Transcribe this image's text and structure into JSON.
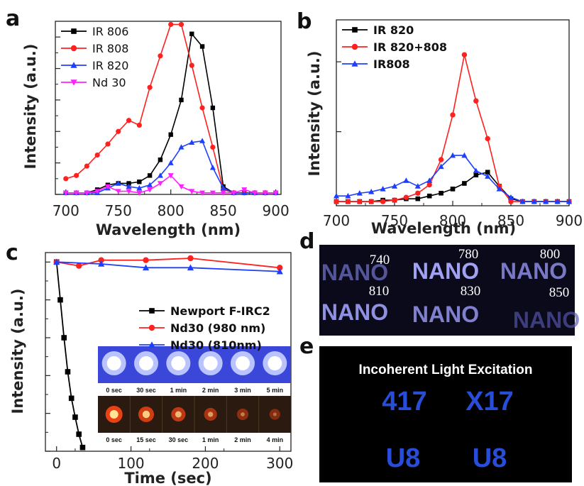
{
  "chart_data": [
    {
      "panel": "a",
      "type": "line",
      "xlabel": "Wavelength (nm)",
      "ylabel": "Intensity (a.u.)",
      "xlim": [
        690,
        905
      ],
      "ylim": [
        0,
        1.1
      ],
      "xticks": [
        "700",
        "750",
        "800",
        "850",
        "900"
      ],
      "grid": false,
      "legend_position": "top-left",
      "x": [
        700,
        710,
        720,
        730,
        740,
        750,
        760,
        770,
        780,
        790,
        800,
        810,
        820,
        830,
        840,
        850,
        860,
        870,
        880,
        890,
        900
      ],
      "series": [
        {
          "name": "IR 806",
          "color": "#000000",
          "marker": "square",
          "values": [
            0.01,
            0.01,
            0.01,
            0.03,
            0.06,
            0.07,
            0.07,
            0.08,
            0.12,
            0.22,
            0.38,
            0.6,
            1.02,
            0.94,
            0.55,
            0.05,
            0.01,
            0.01,
            0.01,
            0.01,
            0.01
          ]
        },
        {
          "name": "IR 808",
          "color": "#ff2020",
          "marker": "circle",
          "values": [
            0.1,
            0.12,
            0.18,
            0.25,
            0.32,
            0.4,
            0.47,
            0.44,
            0.68,
            0.88,
            1.08,
            1.08,
            0.82,
            0.55,
            0.3,
            0.03,
            0.01,
            0.01,
            0.01,
            0.01,
            0.01
          ]
        },
        {
          "name": "IR 820",
          "color": "#1f3fff",
          "marker": "triangle-up",
          "values": [
            0.01,
            0.01,
            0.01,
            0.01,
            0.04,
            0.07,
            0.05,
            0.04,
            0.06,
            0.12,
            0.2,
            0.3,
            0.33,
            0.34,
            0.17,
            0.04,
            0.01,
            0.01,
            0.01,
            0.01,
            0.01
          ]
        },
        {
          "name": "Nd  30",
          "color": "#ff1fff",
          "marker": "triangle-down",
          "values": [
            0.01,
            0.01,
            0.01,
            0.02,
            0.05,
            0.02,
            0.02,
            0.01,
            0.03,
            0.07,
            0.12,
            0.05,
            0.02,
            0.01,
            0.01,
            0.01,
            0.01,
            0.03,
            0.01,
            0.01,
            0.01
          ]
        }
      ]
    },
    {
      "panel": "b",
      "type": "line",
      "xlabel": "Wavelength (nm)",
      "ylabel": "Intensity (a.u.)",
      "xlim": [
        700,
        900
      ],
      "ylim": [
        -0.03,
        1.3
      ],
      "xticks": [
        "700",
        "750",
        "800",
        "850",
        "900"
      ],
      "grid": false,
      "legend_position": "top-left",
      "x": [
        700,
        710,
        720,
        730,
        740,
        750,
        760,
        770,
        780,
        790,
        800,
        810,
        820,
        830,
        840,
        850,
        860,
        870,
        880,
        890,
        900
      ],
      "series": [
        {
          "name": "IR 820",
          "color": "#000000",
          "marker": "square",
          "values": [
            0.0,
            0.0,
            0.0,
            0.0,
            0.01,
            0.01,
            0.02,
            0.02,
            0.04,
            0.06,
            0.09,
            0.13,
            0.19,
            0.21,
            0.11,
            0.02,
            0.0,
            0.0,
            0.0,
            0.0,
            0.0
          ]
        },
        {
          "name": "IR 820+808",
          "color": "#ff2020",
          "marker": "circle",
          "values": [
            0.0,
            0.0,
            0.0,
            0.0,
            0.0,
            0.01,
            0.03,
            0.06,
            0.12,
            0.3,
            0.62,
            1.05,
            0.72,
            0.45,
            0.11,
            0.0,
            0.0,
            0.0,
            0.0,
            0.0,
            0.0
          ]
        },
        {
          "name": "IR808",
          "color": "#1f3fff",
          "marker": "triangle-up",
          "values": [
            0.04,
            0.04,
            0.06,
            0.07,
            0.09,
            0.11,
            0.15,
            0.11,
            0.15,
            0.25,
            0.33,
            0.33,
            0.22,
            0.18,
            0.09,
            0.03,
            0.0,
            0.0,
            0.0,
            0.0,
            0.0
          ]
        }
      ]
    },
    {
      "panel": "c",
      "type": "line",
      "xlabel": "Time (sec)",
      "ylabel": "Intensity (a.u.)",
      "xlim": [
        -15,
        315
      ],
      "ylim": [
        0,
        1.05
      ],
      "xticks": [
        "0",
        "100",
        "200",
        "300"
      ],
      "grid": false,
      "legend_position": "top-right",
      "series": [
        {
          "name": "Newport F-IRC2",
          "color": "#000000",
          "marker": "square",
          "x": [
            0,
            5,
            10,
            15,
            20,
            25,
            30,
            35
          ],
          "values": [
            1.0,
            0.8,
            0.6,
            0.42,
            0.28,
            0.18,
            0.09,
            0.02
          ]
        },
        {
          "name": "Nd30 (980 nm)",
          "color": "#ff2020",
          "marker": "circle",
          "x": [
            0,
            30,
            60,
            120,
            180,
            300
          ],
          "values": [
            1.0,
            0.98,
            1.01,
            1.01,
            1.02,
            0.97
          ]
        },
        {
          "name": "Nd30 (810nm)",
          "color": "#1f3fff",
          "marker": "triangle-up",
          "x": [
            0,
            60,
            120,
            180,
            300
          ],
          "values": [
            1.0,
            0.99,
            0.97,
            0.97,
            0.95
          ]
        }
      ]
    }
  ],
  "panel_labels": {
    "a": "a",
    "b": "b",
    "c": "c",
    "d": "d",
    "e": "e"
  },
  "inset_c": {
    "top_labels": [
      "0 sec",
      "30 sec",
      "1 min",
      "2 min",
      "3 min",
      "5 min"
    ],
    "bottom_labels": [
      "0 sec",
      "15 sec",
      "30 sec",
      "1 min",
      "2 min",
      "4 min"
    ],
    "bottom_brightness": [
      1.0,
      0.8,
      0.62,
      0.42,
      0.22,
      0.12
    ]
  },
  "panel_d": {
    "labels": [
      "740",
      "780",
      "800",
      "810",
      "830",
      "850"
    ],
    "word": "NANO",
    "word_brightness": [
      0.45,
      0.95,
      0.7,
      0.85,
      0.75,
      0.25
    ]
  },
  "panel_e": {
    "title": "Incoherent Light Excitation",
    "glyphs": [
      "417",
      "X17",
      "U8",
      "U8"
    ]
  },
  "colors": {
    "black": "#000000",
    "red": "#ff2020",
    "blue": "#1f3fff",
    "magenta": "#ff1fff"
  }
}
